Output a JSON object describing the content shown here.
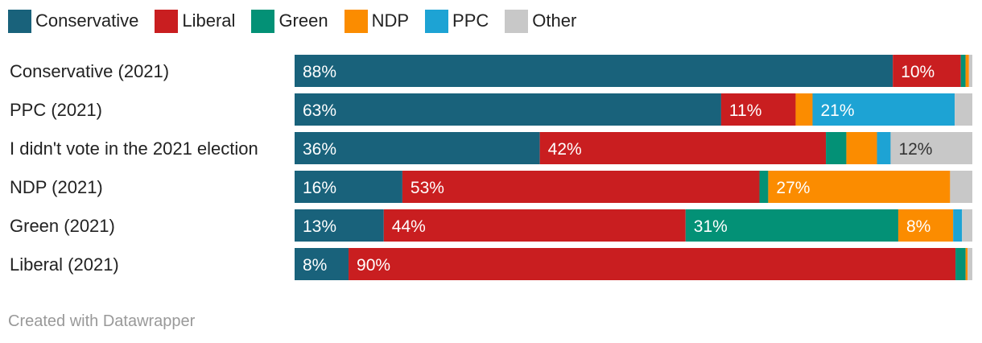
{
  "chart_data": {
    "type": "bar",
    "orientation": "horizontal",
    "stacked": true,
    "xlim": [
      0,
      100
    ],
    "legend_position": "top-left",
    "categories": [
      "Conservative (2021)",
      "PPC (2021)",
      "I didn't vote in the 2021 election",
      "NDP (2021)",
      "Green (2021)",
      "Liberal (2021)"
    ],
    "series": [
      {
        "name": "Conservative",
        "color": "#19627b",
        "label_color": "#ffffff",
        "values": [
          88,
          63,
          36,
          16,
          13,
          8
        ]
      },
      {
        "name": "Liberal",
        "color": "#c91e20",
        "label_color": "#ffffff",
        "values": [
          10,
          11,
          42,
          53,
          44,
          90
        ]
      },
      {
        "name": "Green",
        "color": "#039176",
        "label_color": "#ffffff",
        "values": [
          0.7,
          0,
          3,
          1.3,
          31,
          1.5
        ]
      },
      {
        "name": "NDP",
        "color": "#fb8c00",
        "label_color": "#ffffff",
        "values": [
          0.5,
          2.5,
          4.5,
          27,
          8,
          0.3
        ]
      },
      {
        "name": "PPC",
        "color": "#1da3d4",
        "label_color": "#ffffff",
        "values": [
          0,
          21,
          2,
          0,
          1.3,
          0
        ]
      },
      {
        "name": "Other",
        "color": "#c8c8c8",
        "label_color": "#333333",
        "values": [
          0.5,
          2.6,
          12,
          3.3,
          1.5,
          0.7
        ]
      }
    ],
    "data_labels": [
      [
        "88%",
        "10%",
        "",
        "",
        "",
        ""
      ],
      [
        "63%",
        "11%",
        "",
        "",
        "21%",
        ""
      ],
      [
        "36%",
        "42%",
        "",
        "",
        "",
        "12%"
      ],
      [
        "16%",
        "53%",
        "",
        "27%",
        "",
        ""
      ],
      [
        "13%",
        "44%",
        "31%",
        "8%",
        "",
        ""
      ],
      [
        "8%",
        "90%",
        "",
        "",
        "",
        ""
      ]
    ]
  },
  "footer": {
    "credit": "Created with Datawrapper"
  }
}
